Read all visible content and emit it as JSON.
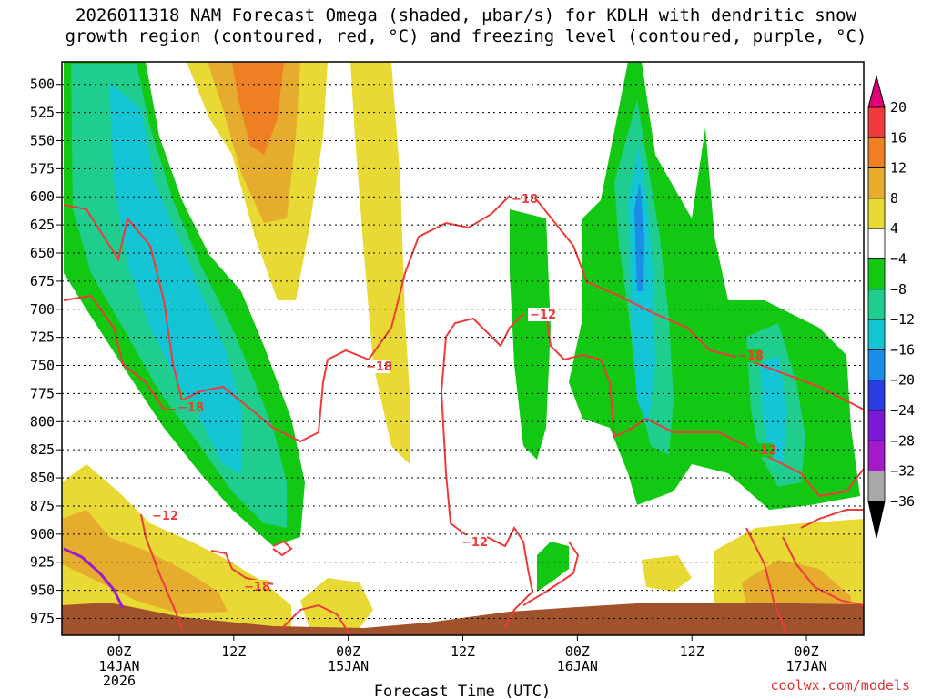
{
  "chart_data": {
    "type": "heatmap",
    "title": "2026011318 NAM Forecast Omega (shaded, μbar/s) for KDLH with dendritic snow\ngrowth region (contoured, red, °C) and freezing level (contoured, purple, °C)",
    "xlabel": "Forecast Time (UTC)",
    "ylabel": "",
    "y_ticks": [
      "500",
      "525",
      "550",
      "575",
      "600",
      "625",
      "650",
      "675",
      "700",
      "725",
      "750",
      "775",
      "800",
      "825",
      "850",
      "875",
      "900",
      "925",
      "950",
      "975"
    ],
    "x_ticks": [
      {
        "label": "00Z",
        "date": "14JAN",
        "year": "2026",
        "hour": 6
      },
      {
        "label": "12Z",
        "date": "",
        "year": "",
        "hour": 18
      },
      {
        "label": "00Z",
        "date": "15JAN",
        "year": "",
        "hour": 30
      },
      {
        "label": "12Z",
        "date": "",
        "year": "",
        "hour": 42
      },
      {
        "label": "00Z",
        "date": "16JAN",
        "year": "",
        "hour": 54
      },
      {
        "label": "12Z",
        "date": "",
        "year": "",
        "hour": 66
      },
      {
        "label": "00Z",
        "date": "17JAN",
        "year": "",
        "hour": 78
      }
    ],
    "x_range_hours": [
      0,
      84
    ],
    "y_range_mb": [
      480,
      990
    ],
    "colorbar": {
      "labels": [
        "20",
        "16",
        "12",
        "8",
        "4",
        "−4",
        "−8",
        "−12",
        "−16",
        "−20",
        "−24",
        "−28",
        "−32",
        "−36"
      ],
      "colors": [
        "#e0007a",
        "#ee3a3a",
        "#ee7f22",
        "#e6ac2e",
        "#e8d935",
        "#ffffff",
        "#13c813",
        "#1fce8e",
        "#13c4d4",
        "#1a8de6",
        "#2a3ee0",
        "#7b1ad6",
        "#a41ac6",
        "#a8a8a8",
        "#000000"
      ]
    },
    "contour_labels": [
      {
        "text": "−12",
        "series": "dgz"
      },
      {
        "text": "−12",
        "series": "dgz"
      },
      {
        "text": "−12",
        "series": "dgz"
      },
      {
        "text": "−12",
        "series": "dgz"
      },
      {
        "text": "−18",
        "series": "dgz"
      },
      {
        "text": "−18",
        "series": "dgz"
      },
      {
        "text": "−18",
        "series": "dgz"
      },
      {
        "text": "−18",
        "series": "dgz"
      },
      {
        "text": "−18",
        "series": "dgz"
      }
    ]
  },
  "credit": "coolwx.com/models"
}
